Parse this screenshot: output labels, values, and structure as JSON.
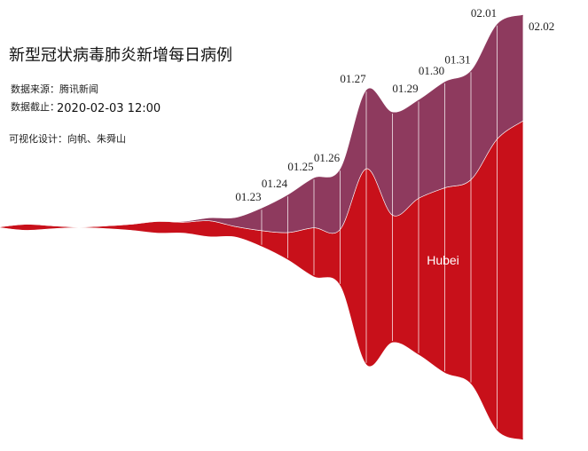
{
  "chart_data": {
    "type": "streamgraph",
    "title": "新型冠状病毒肺炎新增每日病例",
    "source": "数据来源：腾讯新闻",
    "cutoff_label": "数据截止：",
    "cutoff": "2020-02-03 12:00",
    "credit": "可视化设计：向帆、朱舜山",
    "categories": [
      null,
      null,
      null,
      null,
      null,
      null,
      null,
      null,
      null,
      null,
      "01.23",
      "01.24",
      "01.25",
      "01.26",
      "01.27",
      null,
      "01.29",
      "01.30",
      "01.31",
      "02.01",
      "02.02"
    ],
    "series": [
      {
        "name": "Hubei",
        "color": "#c8101a",
        "values": [
          5,
          40,
          20,
          4,
          17,
          40,
          77,
          72,
          105,
          69,
          105,
          180,
          323,
          371,
          1291,
          840,
          1032,
          1220,
          1347,
          1921,
          2103
        ]
      },
      {
        "color": "#8e3a5e",
        "values": [
          0,
          0,
          0,
          0,
          0,
          0,
          0,
          5,
          20,
          60,
          150,
          250,
          330,
          400,
          520,
          680,
          650,
          700,
          720,
          760,
          700
        ]
      }
    ]
  }
}
